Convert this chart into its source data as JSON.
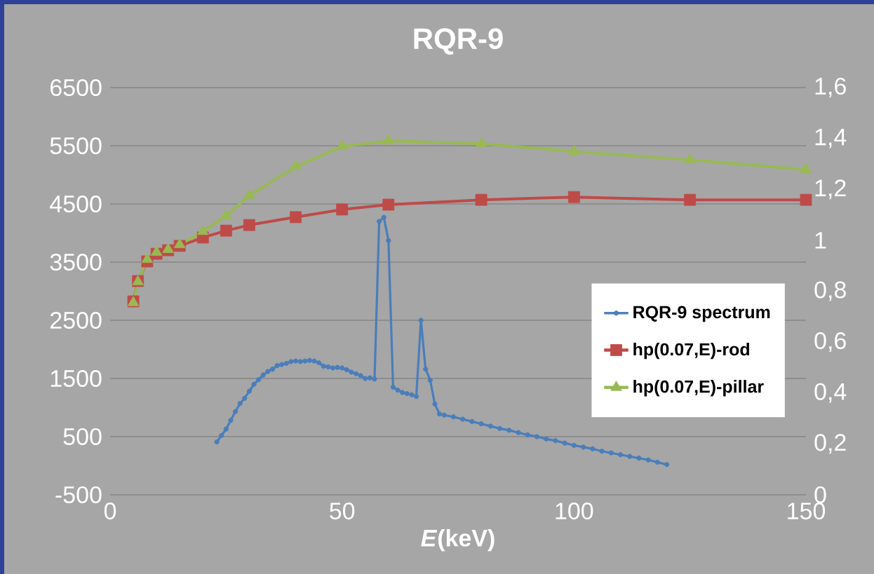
{
  "chart_data": {
    "type": "line",
    "title": "RQR-9",
    "xlabel": "*E*(keV)",
    "xlim": [
      0,
      150
    ],
    "xticks": [
      0,
      50,
      100,
      150
    ],
    "ylim": [
      -500,
      6500
    ],
    "yticks": [
      -500,
      500,
      1500,
      2500,
      3500,
      4500,
      5500,
      6500
    ],
    "y2lim": [
      0,
      1.6
    ],
    "y2ticks": [
      0,
      {
        "value": 0.2,
        "label": "0,2"
      },
      {
        "value": 0.4,
        "label": "0,4"
      },
      {
        "value": 0.6,
        "label": "0,6"
      },
      {
        "value": 0.8,
        "label": "0,8"
      },
      1,
      {
        "value": 1.2,
        "label": "1,2"
      },
      {
        "value": 1.4,
        "label": "1,4"
      },
      {
        "value": 1.6,
        "label": "1,6"
      }
    ],
    "grid": "y",
    "legend": "right",
    "series": [
      {
        "name": "RQR-9 spectrum",
        "color": "#4a7ebb",
        "marker": "circle",
        "x": [
          23,
          24,
          25,
          26,
          27,
          28,
          29,
          30,
          31,
          32,
          33,
          34,
          35,
          36,
          37,
          38,
          39,
          40,
          41,
          42,
          43,
          44,
          45,
          46,
          47,
          48,
          49,
          50,
          51,
          52,
          53,
          54,
          55,
          56,
          57,
          58,
          59,
          60,
          61,
          62,
          63,
          64,
          65,
          66,
          67,
          68,
          69,
          70,
          71,
          72,
          74,
          76,
          78,
          80,
          82,
          84,
          86,
          88,
          90,
          92,
          94,
          96,
          98,
          100,
          102,
          104,
          106,
          108,
          110,
          112,
          114,
          116,
          118,
          120
        ],
        "values": [
          410,
          520,
          630,
          780,
          930,
          1070,
          1160,
          1280,
          1400,
          1480,
          1560,
          1620,
          1660,
          1720,
          1740,
          1760,
          1790,
          1800,
          1790,
          1800,
          1810,
          1800,
          1770,
          1710,
          1700,
          1680,
          1690,
          1680,
          1650,
          1610,
          1580,
          1550,
          1500,
          1510,
          1490,
          4200,
          4270,
          3870,
          1350,
          1300,
          1260,
          1240,
          1220,
          1190,
          2500,
          1660,
          1470,
          1060,
          890,
          870,
          840,
          800,
          760,
          720,
          680,
          640,
          610,
          570,
          530,
          500,
          460,
          430,
          390,
          350,
          320,
          290,
          250,
          220,
          190,
          160,
          130,
          100,
          60,
          20
        ]
      },
      {
        "name": "hp(0.07,E)-rod",
        "color": "#be4b48",
        "marker": "square",
        "axis": "y2",
        "x": [
          5,
          6,
          8,
          10,
          12.5,
          15,
          20,
          25,
          30,
          40,
          50,
          60,
          80,
          100,
          125,
          150
        ],
        "values": [
          0.76,
          0.84,
          0.917,
          0.947,
          0.961,
          0.978,
          1.011,
          1.038,
          1.06,
          1.091,
          1.121,
          1.14,
          1.159,
          1.17,
          1.159,
          1.159
        ]
      },
      {
        "name": "hp(0.07,E)-pillar",
        "color": "#98b954",
        "marker": "triangle",
        "axis": "y2",
        "x": [
          5,
          6,
          8,
          10,
          12.5,
          15,
          20,
          25,
          30,
          40,
          50,
          60,
          80,
          100,
          125,
          150
        ],
        "values": [
          0.755,
          0.837,
          0.925,
          0.953,
          0.964,
          0.983,
          1.035,
          1.096,
          1.176,
          1.289,
          1.369,
          1.391,
          1.38,
          1.349,
          1.316,
          1.278
        ]
      }
    ]
  }
}
